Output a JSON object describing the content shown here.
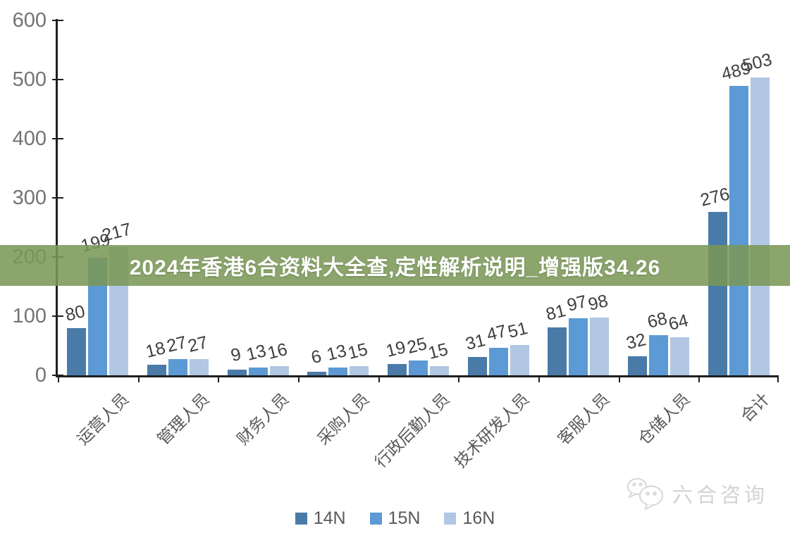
{
  "banner": {
    "title": "2024年香港6合资料大全查,定性解析说明_增强版34.26",
    "bg_color": "#7a9856",
    "text_color": "#ffffff"
  },
  "watermark": {
    "icon": "wechat-chat-bubbles-icon",
    "text": "六合咨询",
    "color": "#d3d3d3"
  },
  "chart_data": {
    "type": "bar",
    "title": "",
    "xlabel": "",
    "ylabel": "",
    "categories": [
      "运营人员",
      "管理人员",
      "财务人员",
      "采购人员",
      "行政后勤人员",
      "技术研发人员",
      "客服人员",
      "仓储人员",
      "合计"
    ],
    "series": [
      {
        "name": "14N",
        "color": "#4a7aa8",
        "values": [
          80,
          18,
          9,
          6,
          19,
          31,
          81,
          32,
          276
        ]
      },
      {
        "name": "15N",
        "color": "#5b9ad4",
        "values": [
          199,
          27,
          13,
          13,
          25,
          47,
          97,
          68,
          489
        ]
      },
      {
        "name": "16N",
        "color": "#b1c7e4",
        "values": [
          217,
          27,
          16,
          15,
          15,
          51,
          98,
          64,
          503
        ]
      }
    ],
    "ylim": [
      0,
      600
    ],
    "yticks": [
      0,
      100,
      200,
      300,
      400,
      500,
      600
    ],
    "grid": false,
    "legend_position": "bottom",
    "bar_value_labels": true,
    "axis_color": "#1f1f1f",
    "tick_label_color": "#737373",
    "category_label_color": "#595959",
    "value_label_color": "#3f3f3f"
  }
}
